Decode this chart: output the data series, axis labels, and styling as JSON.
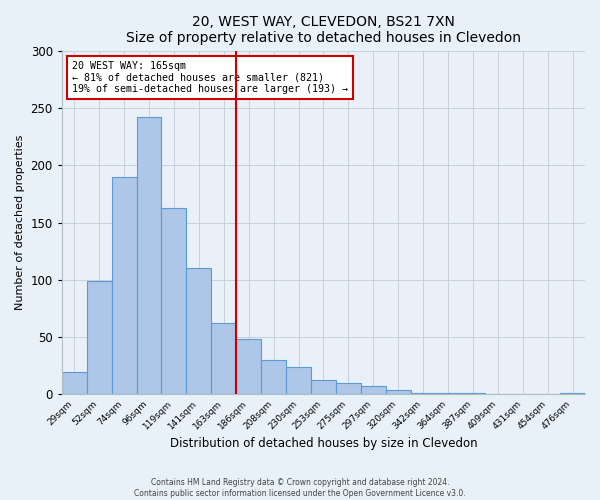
{
  "title": "20, WEST WAY, CLEVEDON, BS21 7XN",
  "subtitle": "Size of property relative to detached houses in Clevedon",
  "xlabel": "Distribution of detached houses by size in Clevedon",
  "ylabel": "Number of detached properties",
  "bar_labels": [
    "29sqm",
    "52sqm",
    "74sqm",
    "96sqm",
    "119sqm",
    "141sqm",
    "163sqm",
    "186sqm",
    "208sqm",
    "230sqm",
    "253sqm",
    "275sqm",
    "297sqm",
    "320sqm",
    "342sqm",
    "364sqm",
    "387sqm",
    "409sqm",
    "431sqm",
    "454sqm",
    "476sqm"
  ],
  "bar_values": [
    20,
    99,
    190,
    242,
    163,
    110,
    62,
    48,
    30,
    24,
    13,
    10,
    7,
    4,
    1,
    1,
    1,
    0,
    0,
    0,
    1
  ],
  "bar_color": "#aec6e8",
  "bar_edge_color": "#5b9bd5",
  "vline_x_index": 6,
  "vline_color": "#cc0000",
  "annotation_line1": "20 WEST WAY: 165sqm",
  "annotation_line2": "← 81% of detached houses are smaller (821)",
  "annotation_line3": "19% of semi-detached houses are larger (193) →",
  "annotation_box_color": "#ffffff",
  "annotation_box_edge": "#cc0000",
  "ylim": [
    0,
    300
  ],
  "yticks": [
    0,
    50,
    100,
    150,
    200,
    250,
    300
  ],
  "footer1": "Contains HM Land Registry data © Crown copyright and database right 2024.",
  "footer2": "Contains public sector information licensed under the Open Government Licence v3.0.",
  "bg_color": "#e8f0f8",
  "plot_bg_color": "#eaf0f8"
}
